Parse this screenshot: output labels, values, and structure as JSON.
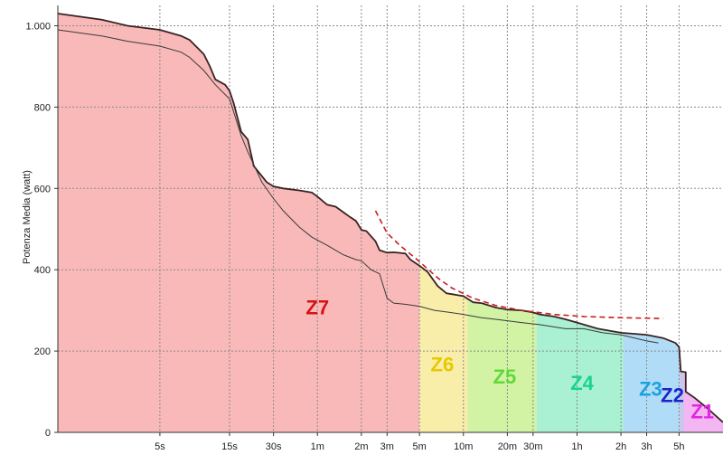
{
  "chart_data": {
    "type": "area",
    "title": "",
    "ylabel": "Potenza Media (watt)",
    "xlabel": "",
    "x_scale": "log",
    "xlim_seconds": [
      1,
      36000
    ],
    "ylim": [
      0,
      1050
    ],
    "grid": true,
    "y_ticks": [
      {
        "value": 0,
        "label": "0"
      },
      {
        "value": 200,
        "label": "200"
      },
      {
        "value": 400,
        "label": "400"
      },
      {
        "value": 600,
        "label": "600"
      },
      {
        "value": 800,
        "label": "800"
      },
      {
        "value": 1000,
        "label": "1.000"
      }
    ],
    "x_ticks": [
      {
        "seconds": 5,
        "label": "5s"
      },
      {
        "seconds": 15,
        "label": "15s"
      },
      {
        "seconds": 30,
        "label": "30s"
      },
      {
        "seconds": 60,
        "label": "1m"
      },
      {
        "seconds": 120,
        "label": "2m"
      },
      {
        "seconds": 180,
        "label": "3m"
      },
      {
        "seconds": 300,
        "label": "5m"
      },
      {
        "seconds": 600,
        "label": "10m"
      },
      {
        "seconds": 1200,
        "label": "20m"
      },
      {
        "seconds": 1800,
        "label": "30m"
      },
      {
        "seconds": 3600,
        "label": "1h"
      },
      {
        "seconds": 7200,
        "label": "2h"
      },
      {
        "seconds": 10800,
        "label": "3h"
      },
      {
        "seconds": 18000,
        "label": "5h"
      }
    ],
    "zones": [
      {
        "label": "Z7",
        "from_s": 1,
        "to_s": 300,
        "fill": "#f9b9b9",
        "text_color": "#d51313",
        "label_at_s": 60,
        "label_at_w": 290
      },
      {
        "label": "Z6",
        "from_s": 300,
        "to_s": 640,
        "fill": "#f8eda9",
        "text_color": "#e8c800",
        "label_at_s": 430,
        "label_at_w": 150
      },
      {
        "label": "Z5",
        "from_s": 640,
        "to_s": 1900,
        "fill": "#d2f2a4",
        "text_color": "#5fd93a",
        "label_at_s": 1150,
        "label_at_w": 120
      },
      {
        "label": "Z4",
        "from_s": 1900,
        "to_s": 7500,
        "fill": "#aaf0d2",
        "text_color": "#19d48c",
        "label_at_s": 3900,
        "label_at_w": 105
      },
      {
        "label": "Z3",
        "from_s": 7500,
        "to_s": 18000,
        "fill": "#b0dcf7",
        "text_color": "#1aa2e0",
        "label_at_s": 11500,
        "label_at_w": 90
      },
      {
        "label": "Z2",
        "from_s": 18000,
        "to_s": 19500,
        "fill": "#c8c8ee",
        "text_color": "#1c23c9",
        "label_at_s": 16200,
        "label_at_w": 75
      },
      {
        "label": "Z1",
        "from_s": 19500,
        "to_s": 36000,
        "fill": "#f3b6f3",
        "text_color": "#e324e3",
        "label_at_s": 26000,
        "label_at_w": 35
      }
    ],
    "series": [
      {
        "style": "max_envelope",
        "color": "#3a2222",
        "points": [
          [
            1,
            1030
          ],
          [
            2,
            1015
          ],
          [
            3,
            1000
          ],
          [
            5,
            990
          ],
          [
            7,
            975
          ],
          [
            8,
            965
          ],
          [
            10,
            930
          ],
          [
            11,
            900
          ],
          [
            12,
            868
          ],
          [
            14,
            855
          ],
          [
            15,
            840
          ],
          [
            16,
            810
          ],
          [
            18,
            740
          ],
          [
            20,
            720
          ],
          [
            22,
            655
          ],
          [
            27,
            615
          ],
          [
            30,
            605
          ],
          [
            35,
            600
          ],
          [
            45,
            595
          ],
          [
            55,
            590
          ],
          [
            60,
            580
          ],
          [
            70,
            560
          ],
          [
            80,
            555
          ],
          [
            100,
            530
          ],
          [
            110,
            520
          ],
          [
            120,
            498
          ],
          [
            130,
            495
          ],
          [
            150,
            470
          ],
          [
            160,
            448
          ],
          [
            180,
            442
          ],
          [
            200,
            443
          ],
          [
            240,
            440
          ],
          [
            260,
            425
          ],
          [
            300,
            410
          ],
          [
            340,
            395
          ],
          [
            400,
            360
          ],
          [
            460,
            342
          ],
          [
            500,
            340
          ],
          [
            600,
            335
          ],
          [
            700,
            320
          ],
          [
            800,
            318
          ],
          [
            1000,
            307
          ],
          [
            1200,
            302
          ],
          [
            1500,
            300
          ],
          [
            1800,
            295
          ],
          [
            2000,
            290
          ],
          [
            2500,
            285
          ],
          [
            3000,
            278
          ],
          [
            3600,
            270
          ],
          [
            5000,
            255
          ],
          [
            7200,
            245
          ],
          [
            10800,
            240
          ],
          [
            14000,
            232
          ],
          [
            17000,
            220
          ],
          [
            18000,
            210
          ],
          [
            18500,
            150
          ],
          [
            20000,
            148
          ],
          [
            20000,
            100
          ],
          [
            23000,
            85
          ],
          [
            28000,
            60
          ],
          [
            36000,
            25
          ]
        ]
      },
      {
        "style": "ride_curve",
        "color": "#3a3a3a",
        "points": [
          [
            1,
            990
          ],
          [
            2,
            975
          ],
          [
            3,
            962
          ],
          [
            5,
            950
          ],
          [
            7,
            935
          ],
          [
            8,
            922
          ],
          [
            10,
            890
          ],
          [
            12,
            855
          ],
          [
            15,
            820
          ],
          [
            18,
            730
          ],
          [
            20,
            690
          ],
          [
            25,
            615
          ],
          [
            30,
            575
          ],
          [
            35,
            545
          ],
          [
            45,
            505
          ],
          [
            55,
            480
          ],
          [
            70,
            460
          ],
          [
            90,
            437
          ],
          [
            110,
            425
          ],
          [
            120,
            422
          ],
          [
            140,
            400
          ],
          [
            160,
            390
          ],
          [
            180,
            330
          ],
          [
            200,
            318
          ],
          [
            240,
            315
          ],
          [
            300,
            310
          ],
          [
            380,
            300
          ],
          [
            460,
            296
          ],
          [
            600,
            290
          ],
          [
            800,
            282
          ],
          [
            1000,
            278
          ],
          [
            1500,
            270
          ],
          [
            2000,
            265
          ],
          [
            3000,
            255
          ],
          [
            4000,
            255
          ],
          [
            5400,
            245
          ],
          [
            7200,
            240
          ],
          [
            10800,
            225
          ],
          [
            13000,
            220
          ]
        ]
      },
      {
        "style": "cp_model",
        "color": "#c81e1e",
        "points": [
          [
            150,
            545
          ],
          [
            180,
            490
          ],
          [
            220,
            460
          ],
          [
            300,
            420
          ],
          [
            400,
            380
          ],
          [
            500,
            355
          ],
          [
            700,
            330
          ],
          [
            1000,
            312
          ],
          [
            1500,
            300
          ],
          [
            2500,
            290
          ],
          [
            4000,
            285
          ],
          [
            7200,
            282
          ],
          [
            14000,
            280
          ]
        ]
      }
    ]
  }
}
